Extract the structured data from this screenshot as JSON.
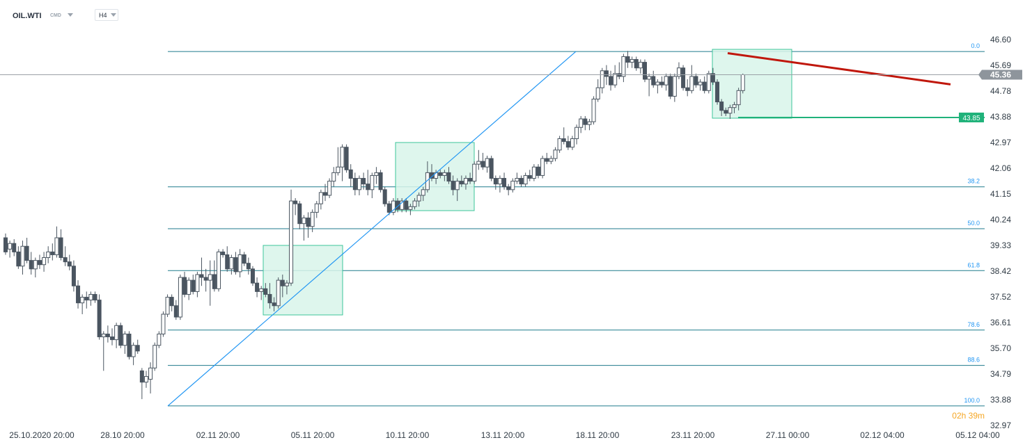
{
  "header": {
    "symbol": "OIL.WTI",
    "instrument_type": "CMD",
    "timeframe": "H4",
    "dropdown_icon": "chevron-down-icon"
  },
  "countdown": "02h 39m",
  "colors": {
    "up_candle": "#ffffff",
    "down_candle": "#4a5560",
    "fib_line": "#1f7a8c",
    "trend_line": "#2196f3",
    "resistance_line": "#c0170c",
    "support_line": "#20b27a",
    "zone_fill": "#d8f5ea",
    "zone_border": "#3cc59a",
    "current_price_tag": "#8e959c",
    "support_tag": "#20b27a"
  },
  "chart_data": {
    "type": "candlestick",
    "symbol": "OIL.WTI",
    "timeframe": "H4",
    "y_ticks": [
      "46.60",
      "45.69",
      "44.78",
      "43.88",
      "42.97",
      "42.06",
      "41.15",
      "40.24",
      "39.33",
      "38.42",
      "37.52",
      "36.61",
      "35.70",
      "34.79",
      "33.88",
      "32.97"
    ],
    "x_ticks": [
      "25.10.2020 20:00",
      "28.10 20:00",
      "02.11 20:00",
      "05.11 20:00",
      "10.11 20:00",
      "13.11 20:00",
      "18.11 20:00",
      "23.11 20:00",
      "27.11 00:00",
      "02.12 04:00",
      "05.12 04:00"
    ],
    "ylim": [
      32.97,
      46.6
    ],
    "current_price": {
      "value": 45.36,
      "label": "45.36"
    },
    "support_tag": {
      "value": 43.85,
      "label": "43.85"
    },
    "fibonacci": {
      "low": 33.66,
      "high": 46.18,
      "levels": [
        {
          "label": "0.0",
          "price": 46.18
        },
        {
          "label": "38.2",
          "price": 41.4
        },
        {
          "label": "50.0",
          "price": 39.92
        },
        {
          "label": "61.8",
          "price": 38.44
        },
        {
          "label": "78.6",
          "price": 36.34
        },
        {
          "label": "88.6",
          "price": 35.09
        },
        {
          "label": "100.0",
          "price": 33.66
        }
      ]
    },
    "candles": [
      {
        "o": 39.6,
        "h": 39.75,
        "l": 39.0,
        "c": 39.1
      },
      {
        "o": 39.2,
        "h": 39.5,
        "l": 38.9,
        "c": 39.4
      },
      {
        "o": 39.4,
        "h": 39.55,
        "l": 38.95,
        "c": 39.1
      },
      {
        "o": 39.1,
        "h": 39.3,
        "l": 38.5,
        "c": 38.6
      },
      {
        "o": 38.6,
        "h": 39.5,
        "l": 38.3,
        "c": 39.3
      },
      {
        "o": 39.3,
        "h": 39.6,
        "l": 38.7,
        "c": 38.8
      },
      {
        "o": 38.8,
        "h": 39.1,
        "l": 38.3,
        "c": 38.5
      },
      {
        "o": 38.5,
        "h": 38.9,
        "l": 38.2,
        "c": 38.8
      },
      {
        "o": 38.8,
        "h": 39.0,
        "l": 38.5,
        "c": 38.65
      },
      {
        "o": 38.65,
        "h": 39.1,
        "l": 38.4,
        "c": 38.9
      },
      {
        "o": 38.9,
        "h": 39.3,
        "l": 38.7,
        "c": 39.1
      },
      {
        "o": 39.1,
        "h": 39.4,
        "l": 38.8,
        "c": 39.0
      },
      {
        "o": 39.0,
        "h": 40.0,
        "l": 38.9,
        "c": 39.6
      },
      {
        "o": 39.6,
        "h": 39.9,
        "l": 38.8,
        "c": 38.9
      },
      {
        "o": 38.9,
        "h": 39.3,
        "l": 38.6,
        "c": 38.75
      },
      {
        "o": 38.75,
        "h": 39.0,
        "l": 38.45,
        "c": 38.6
      },
      {
        "o": 38.6,
        "h": 38.8,
        "l": 37.7,
        "c": 37.9
      },
      {
        "o": 37.9,
        "h": 38.1,
        "l": 37.1,
        "c": 37.3
      },
      {
        "o": 37.3,
        "h": 37.6,
        "l": 36.9,
        "c": 37.5
      },
      {
        "o": 37.5,
        "h": 37.7,
        "l": 37.1,
        "c": 37.4
      },
      {
        "o": 37.4,
        "h": 37.7,
        "l": 37.2,
        "c": 37.6
      },
      {
        "o": 37.6,
        "h": 37.7,
        "l": 37.3,
        "c": 37.4
      },
      {
        "o": 37.4,
        "h": 37.6,
        "l": 36.0,
        "c": 36.1
      },
      {
        "o": 36.1,
        "h": 36.3,
        "l": 34.9,
        "c": 36.2
      },
      {
        "o": 36.2,
        "h": 36.5,
        "l": 35.9,
        "c": 36.1
      },
      {
        "o": 36.1,
        "h": 36.4,
        "l": 35.8,
        "c": 36.0
      },
      {
        "o": 36.0,
        "h": 36.6,
        "l": 35.7,
        "c": 36.5
      },
      {
        "o": 36.5,
        "h": 36.6,
        "l": 35.7,
        "c": 35.8
      },
      {
        "o": 35.8,
        "h": 36.3,
        "l": 35.5,
        "c": 36.2
      },
      {
        "o": 36.2,
        "h": 36.3,
        "l": 35.3,
        "c": 35.4
      },
      {
        "o": 35.4,
        "h": 35.9,
        "l": 35.1,
        "c": 35.8
      },
      {
        "o": 35.8,
        "h": 36.0,
        "l": 35.5,
        "c": 35.6
      },
      {
        "o": 34.9,
        "h": 35.0,
        "l": 33.9,
        "c": 34.5
      },
      {
        "o": 34.5,
        "h": 34.9,
        "l": 34.3,
        "c": 34.7
      },
      {
        "o": 34.6,
        "h": 35.2,
        "l": 34.1,
        "c": 35.0
      },
      {
        "o": 35.0,
        "h": 35.9,
        "l": 34.9,
        "c": 35.8
      },
      {
        "o": 35.8,
        "h": 36.3,
        "l": 35.7,
        "c": 36.2
      },
      {
        "o": 36.2,
        "h": 37.0,
        "l": 36.1,
        "c": 36.9
      },
      {
        "o": 36.9,
        "h": 37.6,
        "l": 36.8,
        "c": 37.5
      },
      {
        "o": 37.5,
        "h": 37.6,
        "l": 37.0,
        "c": 37.2
      },
      {
        "o": 37.2,
        "h": 37.4,
        "l": 36.7,
        "c": 36.8
      },
      {
        "o": 36.8,
        "h": 38.3,
        "l": 36.7,
        "c": 38.2
      },
      {
        "o": 38.2,
        "h": 38.4,
        "l": 37.5,
        "c": 37.6
      },
      {
        "o": 37.6,
        "h": 38.2,
        "l": 37.4,
        "c": 38.1
      },
      {
        "o": 38.1,
        "h": 38.3,
        "l": 37.6,
        "c": 37.7
      },
      {
        "o": 37.7,
        "h": 38.4,
        "l": 37.5,
        "c": 38.3
      },
      {
        "o": 38.3,
        "h": 38.9,
        "l": 37.9,
        "c": 38.2
      },
      {
        "o": 38.2,
        "h": 38.5,
        "l": 37.7,
        "c": 38.1
      },
      {
        "o": 38.1,
        "h": 38.8,
        "l": 37.2,
        "c": 38.3
      },
      {
        "o": 38.3,
        "h": 38.8,
        "l": 37.7,
        "c": 37.8
      },
      {
        "o": 37.8,
        "h": 39.2,
        "l": 37.7,
        "c": 39.1
      },
      {
        "o": 39.1,
        "h": 39.2,
        "l": 38.9,
        "c": 39.0
      },
      {
        "o": 39.0,
        "h": 39.3,
        "l": 38.4,
        "c": 38.5
      },
      {
        "o": 38.5,
        "h": 39.0,
        "l": 38.3,
        "c": 38.9
      },
      {
        "o": 38.9,
        "h": 39.1,
        "l": 38.3,
        "c": 38.4
      },
      {
        "o": 38.4,
        "h": 39.2,
        "l": 38.2,
        "c": 39.0
      },
      {
        "o": 39.0,
        "h": 39.1,
        "l": 38.6,
        "c": 38.7
      },
      {
        "o": 38.7,
        "h": 38.9,
        "l": 38.3,
        "c": 38.5
      },
      {
        "o": 38.5,
        "h": 38.6,
        "l": 37.9,
        "c": 38.0
      },
      {
        "o": 38.0,
        "h": 38.2,
        "l": 37.5,
        "c": 37.7
      },
      {
        "o": 37.7,
        "h": 37.9,
        "l": 37.4,
        "c": 37.8
      },
      {
        "o": 37.8,
        "h": 38.0,
        "l": 37.5,
        "c": 37.6
      },
      {
        "o": 37.6,
        "h": 38.0,
        "l": 37.1,
        "c": 37.3
      },
      {
        "o": 37.3,
        "h": 37.5,
        "l": 37.0,
        "c": 37.2
      },
      {
        "o": 37.2,
        "h": 38.2,
        "l": 37.1,
        "c": 38.1
      },
      {
        "o": 38.1,
        "h": 38.3,
        "l": 37.5,
        "c": 37.9
      },
      {
        "o": 37.9,
        "h": 38.1,
        "l": 37.6,
        "c": 38.0
      },
      {
        "o": 38.0,
        "h": 41.3,
        "l": 37.9,
        "c": 40.9
      },
      {
        "o": 40.9,
        "h": 41.0,
        "l": 40.4,
        "c": 40.8
      },
      {
        "o": 40.8,
        "h": 40.9,
        "l": 39.9,
        "c": 40.1
      },
      {
        "o": 40.1,
        "h": 40.4,
        "l": 39.5,
        "c": 40.3
      },
      {
        "o": 40.3,
        "h": 40.5,
        "l": 39.6,
        "c": 40.0
      },
      {
        "o": 40.0,
        "h": 40.6,
        "l": 39.8,
        "c": 40.5
      },
      {
        "o": 40.5,
        "h": 40.9,
        "l": 40.3,
        "c": 40.8
      },
      {
        "o": 40.8,
        "h": 41.3,
        "l": 40.6,
        "c": 41.2
      },
      {
        "o": 41.2,
        "h": 41.5,
        "l": 40.9,
        "c": 41.1
      },
      {
        "o": 41.1,
        "h": 41.7,
        "l": 41.0,
        "c": 41.6
      },
      {
        "o": 41.6,
        "h": 42.1,
        "l": 41.4,
        "c": 41.9
      },
      {
        "o": 41.9,
        "h": 42.8,
        "l": 41.8,
        "c": 42.1
      },
      {
        "o": 42.1,
        "h": 42.9,
        "l": 41.6,
        "c": 42.8
      },
      {
        "o": 42.8,
        "h": 42.9,
        "l": 41.9,
        "c": 42.0
      },
      {
        "o": 42.0,
        "h": 42.2,
        "l": 41.4,
        "c": 41.7
      },
      {
        "o": 41.7,
        "h": 41.9,
        "l": 41.1,
        "c": 41.3
      },
      {
        "o": 41.3,
        "h": 41.8,
        "l": 41.1,
        "c": 41.7
      },
      {
        "o": 41.7,
        "h": 41.9,
        "l": 41.3,
        "c": 41.5
      },
      {
        "o": 41.5,
        "h": 42.0,
        "l": 41.1,
        "c": 41.3
      },
      {
        "o": 41.3,
        "h": 41.9,
        "l": 41.0,
        "c": 41.8
      },
      {
        "o": 41.8,
        "h": 42.1,
        "l": 41.5,
        "c": 41.9
      },
      {
        "o": 41.9,
        "h": 42.0,
        "l": 41.2,
        "c": 41.3
      },
      {
        "o": 41.3,
        "h": 41.4,
        "l": 40.7,
        "c": 40.8
      },
      {
        "o": 40.8,
        "h": 40.9,
        "l": 40.4,
        "c": 40.5
      },
      {
        "o": 40.5,
        "h": 41.0,
        "l": 40.4,
        "c": 40.9
      },
      {
        "o": 40.9,
        "h": 41.0,
        "l": 40.5,
        "c": 40.6
      },
      {
        "o": 40.6,
        "h": 41.0,
        "l": 40.5,
        "c": 40.9
      },
      {
        "o": 40.9,
        "h": 41.0,
        "l": 40.5,
        "c": 40.6
      },
      {
        "o": 40.6,
        "h": 40.8,
        "l": 40.4,
        "c": 40.7
      },
      {
        "o": 40.7,
        "h": 41.0,
        "l": 40.6,
        "c": 40.9
      },
      {
        "o": 40.9,
        "h": 41.2,
        "l": 40.7,
        "c": 41.1
      },
      {
        "o": 41.1,
        "h": 41.4,
        "l": 40.9,
        "c": 41.3
      },
      {
        "o": 41.3,
        "h": 42.3,
        "l": 41.2,
        "c": 41.9
      },
      {
        "o": 41.9,
        "h": 42.2,
        "l": 41.6,
        "c": 41.7
      },
      {
        "o": 41.7,
        "h": 42.0,
        "l": 41.5,
        "c": 41.9
      },
      {
        "o": 41.9,
        "h": 42.0,
        "l": 41.7,
        "c": 41.8
      },
      {
        "o": 41.8,
        "h": 42.0,
        "l": 41.6,
        "c": 41.9
      },
      {
        "o": 41.9,
        "h": 42.1,
        "l": 41.5,
        "c": 41.6
      },
      {
        "o": 41.6,
        "h": 41.8,
        "l": 41.1,
        "c": 41.3
      },
      {
        "o": 41.3,
        "h": 41.7,
        "l": 40.9,
        "c": 41.6
      },
      {
        "o": 41.6,
        "h": 41.8,
        "l": 41.4,
        "c": 41.5
      },
      {
        "o": 41.5,
        "h": 41.8,
        "l": 41.3,
        "c": 41.7
      },
      {
        "o": 41.7,
        "h": 41.9,
        "l": 41.5,
        "c": 41.6
      },
      {
        "o": 41.6,
        "h": 42.3,
        "l": 41.5,
        "c": 42.2
      },
      {
        "o": 42.2,
        "h": 42.7,
        "l": 42.0,
        "c": 42.3
      },
      {
        "o": 42.3,
        "h": 42.6,
        "l": 42.0,
        "c": 42.1
      },
      {
        "o": 42.1,
        "h": 42.5,
        "l": 41.9,
        "c": 42.4
      },
      {
        "o": 42.4,
        "h": 42.5,
        "l": 41.6,
        "c": 41.7
      },
      {
        "o": 41.7,
        "h": 41.8,
        "l": 41.3,
        "c": 41.5
      },
      {
        "o": 41.5,
        "h": 41.8,
        "l": 41.2,
        "c": 41.7
      },
      {
        "o": 41.7,
        "h": 41.9,
        "l": 41.3,
        "c": 41.4
      },
      {
        "o": 41.4,
        "h": 41.5,
        "l": 41.1,
        "c": 41.3
      },
      {
        "o": 41.3,
        "h": 41.7,
        "l": 41.2,
        "c": 41.6
      },
      {
        "o": 41.6,
        "h": 41.9,
        "l": 41.5,
        "c": 41.7
      },
      {
        "o": 41.7,
        "h": 41.8,
        "l": 41.4,
        "c": 41.5
      },
      {
        "o": 41.5,
        "h": 41.9,
        "l": 41.4,
        "c": 41.8
      },
      {
        "o": 41.8,
        "h": 42.0,
        "l": 41.6,
        "c": 41.7
      },
      {
        "o": 41.7,
        "h": 42.2,
        "l": 41.6,
        "c": 42.1
      },
      {
        "o": 42.1,
        "h": 42.2,
        "l": 41.7,
        "c": 41.8
      },
      {
        "o": 41.8,
        "h": 42.5,
        "l": 41.7,
        "c": 42.4
      },
      {
        "o": 42.4,
        "h": 42.6,
        "l": 42.2,
        "c": 42.3
      },
      {
        "o": 42.3,
        "h": 42.5,
        "l": 42.2,
        "c": 42.4
      },
      {
        "o": 42.4,
        "h": 42.8,
        "l": 42.3,
        "c": 42.7
      },
      {
        "o": 42.7,
        "h": 43.2,
        "l": 42.6,
        "c": 43.1
      },
      {
        "o": 43.1,
        "h": 43.5,
        "l": 42.9,
        "c": 43.0
      },
      {
        "o": 43.0,
        "h": 43.2,
        "l": 42.7,
        "c": 42.8
      },
      {
        "o": 42.8,
        "h": 43.2,
        "l": 42.7,
        "c": 43.1
      },
      {
        "o": 43.1,
        "h": 43.6,
        "l": 42.9,
        "c": 43.5
      },
      {
        "o": 43.5,
        "h": 43.9,
        "l": 43.3,
        "c": 43.8
      },
      {
        "o": 43.8,
        "h": 43.9,
        "l": 43.4,
        "c": 43.6
      },
      {
        "o": 43.6,
        "h": 43.8,
        "l": 43.4,
        "c": 43.7
      },
      {
        "o": 43.7,
        "h": 44.6,
        "l": 43.6,
        "c": 44.5
      },
      {
        "o": 44.5,
        "h": 45.2,
        "l": 44.4,
        "c": 44.9
      },
      {
        "o": 44.9,
        "h": 45.6,
        "l": 44.7,
        "c": 45.5
      },
      {
        "o": 45.5,
        "h": 45.7,
        "l": 45.0,
        "c": 45.3
      },
      {
        "o": 45.3,
        "h": 45.5,
        "l": 44.8,
        "c": 45.0
      },
      {
        "o": 45.0,
        "h": 45.7,
        "l": 44.9,
        "c": 45.4
      },
      {
        "o": 45.4,
        "h": 45.8,
        "l": 45.2,
        "c": 45.3
      },
      {
        "o": 45.3,
        "h": 46.1,
        "l": 45.1,
        "c": 46.0
      },
      {
        "o": 46.0,
        "h": 46.2,
        "l": 45.6,
        "c": 45.8
      },
      {
        "o": 45.8,
        "h": 46.0,
        "l": 45.6,
        "c": 45.9
      },
      {
        "o": 45.9,
        "h": 46.0,
        "l": 45.5,
        "c": 45.6
      },
      {
        "o": 45.6,
        "h": 45.9,
        "l": 45.4,
        "c": 45.8
      },
      {
        "o": 45.8,
        "h": 45.9,
        "l": 45.1,
        "c": 45.2
      },
      {
        "o": 45.2,
        "h": 45.4,
        "l": 44.6,
        "c": 45.3
      },
      {
        "o": 45.3,
        "h": 45.5,
        "l": 44.9,
        "c": 45.0
      },
      {
        "o": 45.0,
        "h": 45.2,
        "l": 44.7,
        "c": 45.1
      },
      {
        "o": 45.1,
        "h": 45.3,
        "l": 44.9,
        "c": 45.0
      },
      {
        "o": 45.0,
        "h": 45.4,
        "l": 44.8,
        "c": 45.3
      },
      {
        "o": 45.3,
        "h": 45.4,
        "l": 44.5,
        "c": 44.6
      },
      {
        "o": 44.6,
        "h": 45.4,
        "l": 44.4,
        "c": 45.3
      },
      {
        "o": 45.3,
        "h": 45.8,
        "l": 45.2,
        "c": 45.6
      },
      {
        "o": 45.6,
        "h": 45.7,
        "l": 44.8,
        "c": 44.9
      },
      {
        "o": 44.9,
        "h": 45.2,
        "l": 44.6,
        "c": 44.8
      },
      {
        "o": 44.8,
        "h": 45.7,
        "l": 44.7,
        "c": 45.3
      },
      {
        "o": 45.3,
        "h": 45.4,
        "l": 44.9,
        "c": 45.0
      },
      {
        "o": 45.0,
        "h": 45.2,
        "l": 44.8,
        "c": 45.1
      },
      {
        "o": 45.1,
        "h": 45.3,
        "l": 44.7,
        "c": 44.8
      },
      {
        "o": 44.8,
        "h": 45.5,
        "l": 44.7,
        "c": 45.4
      },
      {
        "o": 45.4,
        "h": 45.6,
        "l": 45.0,
        "c": 45.1
      },
      {
        "o": 45.1,
        "h": 45.2,
        "l": 44.3,
        "c": 44.4
      },
      {
        "o": 44.4,
        "h": 44.5,
        "l": 43.9,
        "c": 44.1
      },
      {
        "o": 44.1,
        "h": 44.2,
        "l": 43.9,
        "c": 44.0
      },
      {
        "o": 44.0,
        "h": 44.3,
        "l": 43.8,
        "c": 44.2
      },
      {
        "o": 44.2,
        "h": 44.4,
        "l": 44.0,
        "c": 44.3
      },
      {
        "o": 44.3,
        "h": 44.9,
        "l": 44.1,
        "c": 44.8
      },
      {
        "o": 44.8,
        "h": 45.4,
        "l": 44.7,
        "c": 45.36
      }
    ],
    "drawings": {
      "trend_line": {
        "from_price": 33.66,
        "to_price": 46.18
      },
      "resistance_line": {
        "from_price": 46.12,
        "to_price": 45.02
      },
      "support_line": {
        "price": 43.85
      }
    }
  }
}
